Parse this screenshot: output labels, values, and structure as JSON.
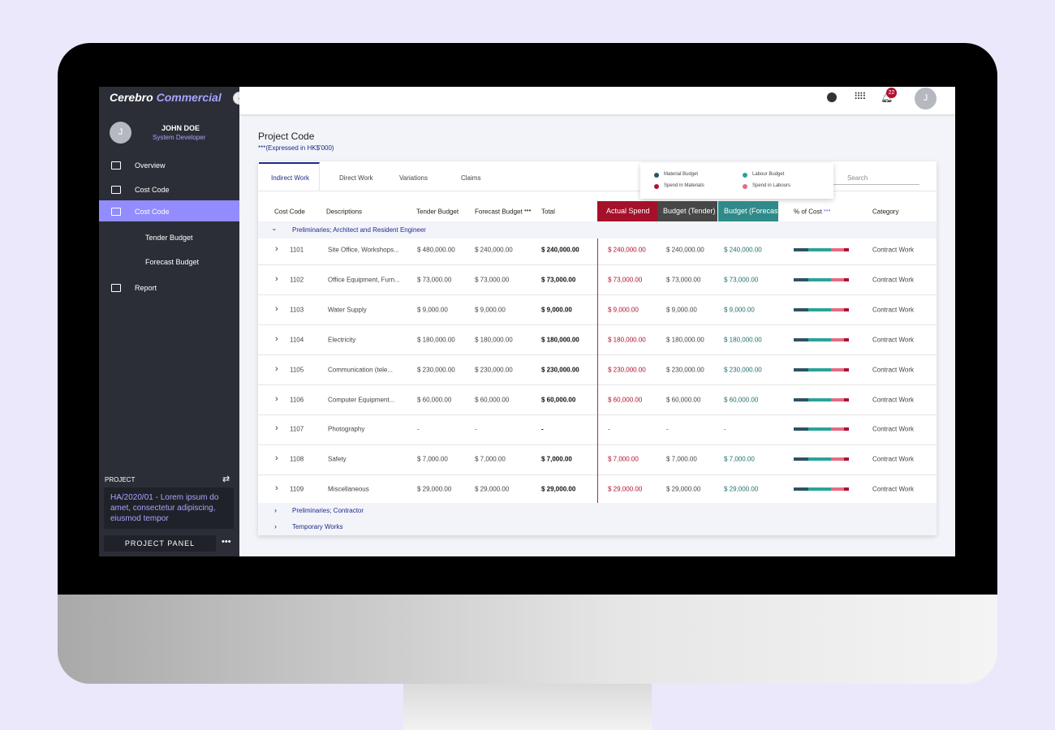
{
  "brand": {
    "first": "Cerebro",
    "second": "Commercial"
  },
  "user": {
    "initial": "J",
    "name": "JOHN DOE",
    "role": "System Developer"
  },
  "nav": [
    "Overview",
    "Cost Code",
    "Cost Code",
    "Tender Budget",
    "Forecast Budget",
    "Report"
  ],
  "project": {
    "heading": "PROJECT",
    "text": "HA/2020/01 - Lorem ipsum do amet, consectetur adipiscing, eiusmod tempor",
    "button": "PROJECT PANEL"
  },
  "topbar": {
    "notifications": "22",
    "avatar": "J"
  },
  "page": {
    "title": "Project Code",
    "subtitle": "***(Expressed in HK$'000)"
  },
  "tabs": [
    "Indirect Work",
    "Direct Work",
    "Variations",
    "Claims"
  ],
  "legend": [
    "Material Budget",
    "Labour Budget",
    "Spend in Materials",
    "Spend in Labours"
  ],
  "search": "Search",
  "table": {
    "headers": [
      "Cost Code",
      "Descriptions",
      "Tender Budget",
      "Forecast Budget",
      "Total",
      "Actual Spend",
      "Budget (Tender)",
      "Budget (Forecast)",
      "% of Cost",
      "Category"
    ],
    "groups": [
      "Preliminaries; Architect and Resident Engineer",
      "Preliminaries; Contractor",
      "Temporary Works"
    ],
    "rows": [
      [
        "1101",
        "Site Office, Workshops...",
        "$ 480,000.00",
        "$ 240,000.00",
        "$ 240,000.00",
        "$ 240,000.00",
        "$ 240,000.00",
        "$ 240,000.00",
        "Contract Work"
      ],
      [
        "1102",
        "Office Equipment, Furn...",
        "$ 73,000.00",
        "$ 73,000.00",
        "$ 73,000.00",
        "$ 73,000.00",
        "$ 73,000.00",
        "$ 73,000.00",
        "Contract Work"
      ],
      [
        "1103",
        "Water Supply",
        "$ 9,000.00",
        "$ 9,000.00",
        "$ 9,000.00",
        "$ 9,000.00",
        "$ 9,000.00",
        "$ 9,000.00",
        "Contract Work"
      ],
      [
        "1104",
        "Electricity",
        "$ 180,000.00",
        "$ 180,000.00",
        "$ 180,000.00",
        "$ 180,000.00",
        "$ 180,000.00",
        "$ 180,000.00",
        "Contract Work"
      ],
      [
        "1105",
        "Communication (tele...",
        "$ 230,000.00",
        "$ 230,000.00",
        "$ 230,000.00",
        "$ 230,000.00",
        "$ 230,000.00",
        "$ 230,000.00",
        "Contract Work"
      ],
      [
        "1106",
        "Computer Equipment...",
        "$ 60,000.00",
        "$ 60,000.00",
        "$ 60,000.00",
        "$ 60,000.00",
        "$ 60,000.00",
        "$ 60,000.00",
        "Contract Work"
      ],
      [
        "1107",
        "Photography",
        "-",
        "-",
        "-",
        "-",
        "-",
        "-",
        "Contract Work"
      ],
      [
        "1108",
        "Safety",
        "$ 7,000.00",
        "$ 7,000.00",
        "$ 7,000.00",
        "$ 7,000.00",
        "$ 7,000.00",
        "$ 7,000.00",
        "Contract Work"
      ],
      [
        "1109",
        "Miscellaneous",
        "$ 29,000.00",
        "$ 29,000.00",
        "$ 29,000.00",
        "$ 29,000.00",
        "$ 29,000.00",
        "$ 29,000.00",
        "Contract Work"
      ]
    ]
  }
}
